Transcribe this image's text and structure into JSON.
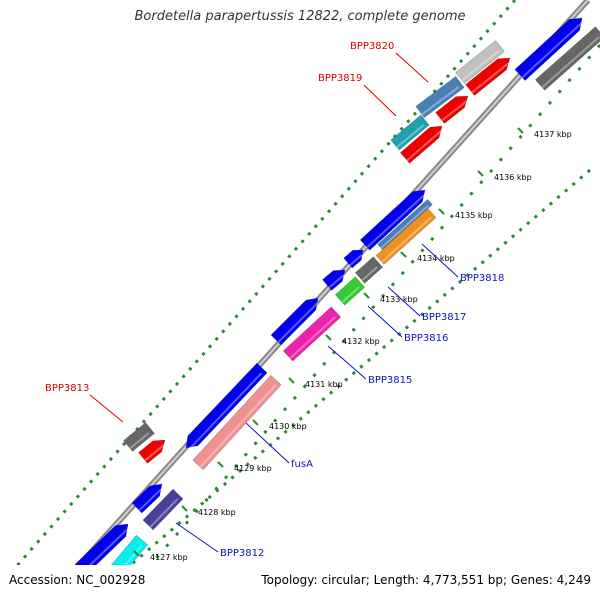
{
  "title": "Bordetella parapertussis 12822, complete genome",
  "footer": {
    "accession": "Accession: NC_002928",
    "summary": "Topology: circular; Length: 4,773,551 bp; Genes: 4,249"
  },
  "colors": {
    "backbone": "#888888",
    "dots": "#2a8a2a",
    "red_label": "#e00000",
    "blue_label": "#1010c0"
  },
  "kbp_ticks": [
    "4127 kbp",
    "4128 kbp",
    "4129 kbp",
    "4130 kbp",
    "4131 kbp",
    "4132 kbp",
    "4133 kbp",
    "4134 kbp",
    "4135 kbp",
    "4136 kbp",
    "4137 kbp"
  ],
  "gene_labels": [
    "BPP3820",
    "BPP3819",
    "BPP3813",
    "BPP3818",
    "BPP3817",
    "BPP3816",
    "BPP3815",
    "fusA",
    "BPP3812"
  ]
}
